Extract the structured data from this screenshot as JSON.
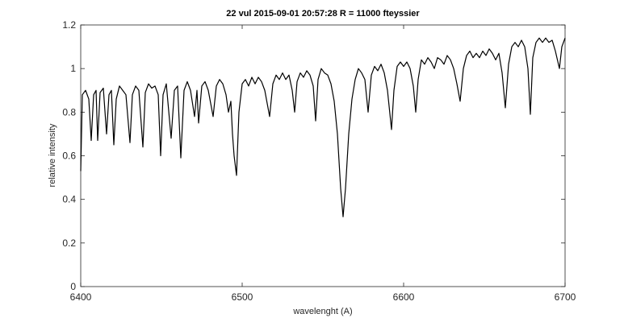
{
  "chart_data": {
    "type": "line",
    "title": "22 vul 2015-09-01   20:57:28 R = 11000 fteyssier",
    "x_label": "wavelenght (A)",
    "y_label": "relative intensity",
    "xlim": [
      6400,
      6700
    ],
    "xticks": [
      6400,
      6500,
      6600,
      6700
    ],
    "ylim": [
      0,
      1.2
    ],
    "yticks": [
      0,
      0.2,
      0.4,
      0.6,
      0.8,
      1,
      1.2
    ],
    "series": [
      {
        "color": "#000000",
        "x": [
          6400,
          6401,
          6403,
          6405,
          6406.5,
          6408,
          6409.5,
          6410.5,
          6412,
          6414,
          6416,
          6417.5,
          6419,
          6420.5,
          6422,
          6424,
          6426,
          6428,
          6430.5,
          6432,
          6434,
          6436,
          6438.5,
          6440,
          6442,
          6444,
          6446,
          6448,
          6449.5,
          6451,
          6453,
          6456,
          6458,
          6460,
          6462,
          6464,
          6466,
          6468,
          6470.5,
          6472,
          6473,
          6475,
          6477,
          6479,
          6482,
          6484,
          6486,
          6488,
          6490,
          6491.5,
          6493,
          6494,
          6495,
          6496.5,
          6498,
          6500,
          6502,
          6504,
          6506,
          6508,
          6510,
          6512,
          6514,
          6517,
          6519,
          6521,
          6523,
          6525,
          6527,
          6529,
          6531,
          6532.5,
          6534,
          6536,
          6538,
          6540,
          6542,
          6544,
          6545.5,
          6547,
          6549,
          6551,
          6553,
          6555,
          6557,
          6559,
          6561,
          6562.5,
          6564,
          6566,
          6568,
          6570,
          6572,
          6574,
          6576,
          6578,
          6580,
          6582,
          6584,
          6586,
          6588,
          6590,
          6592.5,
          6594,
          6596,
          6598,
          6600,
          6602,
          6604,
          6606,
          6607.5,
          6609,
          6611,
          6613,
          6615,
          6617,
          6619,
          6621,
          6623,
          6625,
          6627,
          6629,
          6631,
          6633,
          6635,
          6637,
          6639,
          6641,
          6643,
          6645,
          6647,
          6649,
          6651,
          6653,
          6655,
          6657,
          6659,
          6661,
          6663,
          6665,
          6667,
          6669,
          6671,
          6673,
          6675,
          6677,
          6678.5,
          6680,
          6682,
          6684,
          6686,
          6688,
          6690,
          6692,
          6694,
          6696.5,
          6698,
          6700
        ],
        "values": [
          0.53,
          0.88,
          0.9,
          0.86,
          0.67,
          0.88,
          0.9,
          0.67,
          0.89,
          0.91,
          0.7,
          0.88,
          0.9,
          0.65,
          0.86,
          0.92,
          0.9,
          0.88,
          0.66,
          0.88,
          0.92,
          0.9,
          0.64,
          0.89,
          0.93,
          0.91,
          0.92,
          0.88,
          0.6,
          0.88,
          0.93,
          0.68,
          0.9,
          0.92,
          0.59,
          0.9,
          0.94,
          0.9,
          0.78,
          0.9,
          0.75,
          0.92,
          0.94,
          0.9,
          0.78,
          0.92,
          0.95,
          0.93,
          0.88,
          0.8,
          0.85,
          0.7,
          0.6,
          0.51,
          0.8,
          0.93,
          0.95,
          0.92,
          0.96,
          0.93,
          0.96,
          0.94,
          0.9,
          0.78,
          0.93,
          0.97,
          0.95,
          0.98,
          0.95,
          0.97,
          0.9,
          0.8,
          0.94,
          0.98,
          0.96,
          0.99,
          0.97,
          0.92,
          0.76,
          0.95,
          1.0,
          0.98,
          0.97,
          0.93,
          0.85,
          0.7,
          0.45,
          0.32,
          0.45,
          0.7,
          0.86,
          0.95,
          1.0,
          0.98,
          0.95,
          0.8,
          0.97,
          1.01,
          0.99,
          1.02,
          0.98,
          0.9,
          0.72,
          0.9,
          1.01,
          1.03,
          1.01,
          1.03,
          1.0,
          0.92,
          0.8,
          0.95,
          1.04,
          1.02,
          1.05,
          1.03,
          1.0,
          1.05,
          1.04,
          1.02,
          1.06,
          1.04,
          1.0,
          0.93,
          0.85,
          1.0,
          1.06,
          1.08,
          1.05,
          1.07,
          1.05,
          1.08,
          1.06,
          1.09,
          1.07,
          1.04,
          1.07,
          0.98,
          0.82,
          1.02,
          1.1,
          1.12,
          1.1,
          1.13,
          1.1,
          1.0,
          0.79,
          1.05,
          1.12,
          1.14,
          1.12,
          1.14,
          1.12,
          1.13,
          1.08,
          1.0,
          1.1,
          1.14
        ]
      }
    ]
  }
}
